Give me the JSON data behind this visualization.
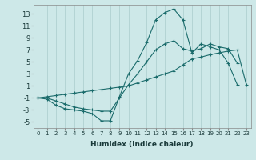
{
  "xlabel": "Humidex (Indice chaleur)",
  "x_ticks": [
    0,
    1,
    2,
    3,
    4,
    5,
    6,
    7,
    8,
    9,
    10,
    11,
    12,
    13,
    14,
    15,
    16,
    17,
    18,
    19,
    20,
    21,
    22,
    23
  ],
  "y_ticks": [
    -5,
    -3,
    -1,
    1,
    3,
    5,
    7,
    9,
    11,
    13
  ],
  "ylim": [
    -6,
    14.5
  ],
  "xlim": [
    -0.5,
    23.5
  ],
  "background_color": "#cde8e8",
  "grid_color": "#aacccc",
  "line_color": "#1a6b6b",
  "line1_x": [
    0,
    1,
    2,
    3,
    4,
    5,
    6,
    7,
    8,
    9,
    10,
    11,
    12,
    13,
    14,
    15,
    16,
    17,
    18,
    19,
    20,
    21,
    22
  ],
  "line1_y": [
    -1.0,
    -1.2,
    -2.2,
    -2.8,
    -3.0,
    -3.2,
    -3.6,
    -4.8,
    -4.8,
    -0.8,
    3.0,
    5.2,
    8.2,
    12.0,
    13.2,
    13.8,
    12.0,
    6.5,
    8.0,
    7.5,
    7.0,
    4.8,
    1.2
  ],
  "line2_x": [
    0,
    1,
    2,
    3,
    4,
    5,
    6,
    7,
    8,
    9,
    10,
    11,
    12,
    13,
    14,
    15,
    16,
    17,
    18,
    19,
    20,
    21,
    22
  ],
  "line2_y": [
    -1.0,
    -1.0,
    -1.5,
    -2.0,
    -2.5,
    -2.8,
    -3.0,
    -3.2,
    -3.2,
    -1.0,
    1.2,
    3.0,
    5.0,
    7.0,
    8.0,
    8.5,
    7.2,
    6.8,
    7.2,
    8.0,
    7.5,
    7.2,
    4.8
  ],
  "line3_x": [
    0,
    1,
    2,
    3,
    4,
    5,
    6,
    7,
    8,
    9,
    10,
    11,
    12,
    13,
    14,
    15,
    16,
    17,
    18,
    19,
    20,
    21,
    22,
    23
  ],
  "line3_y": [
    -1.0,
    -0.8,
    -0.6,
    -0.4,
    -0.2,
    0.0,
    0.2,
    0.4,
    0.6,
    0.8,
    1.0,
    1.5,
    2.0,
    2.5,
    3.0,
    3.5,
    4.5,
    5.5,
    5.8,
    6.2,
    6.5,
    6.8,
    7.0,
    1.2
  ]
}
